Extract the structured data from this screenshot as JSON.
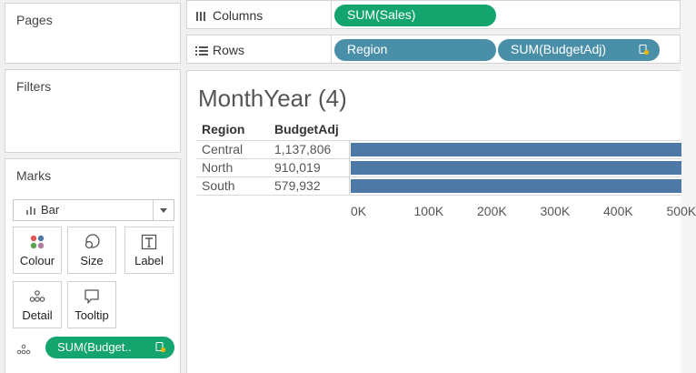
{
  "cards": {
    "pages": "Pages",
    "filters": "Filters",
    "marks": "Marks"
  },
  "marks": {
    "type": "Bar",
    "buttons": {
      "colour": "Colour",
      "size": "Size",
      "label": "Label",
      "detail": "Detail",
      "tooltip": "Tooltip"
    },
    "field_pill": "SUM(Budget..",
    "pill_color": "#14a46e"
  },
  "shelves": {
    "columns": {
      "label": "Columns",
      "pills": [
        "SUM(Sales)"
      ]
    },
    "rows": {
      "label": "Rows",
      "pills": [
        "Region",
        "SUM(BudgetAdj)"
      ]
    }
  },
  "colors": {
    "green_pill": "#14a46e",
    "blue_pill": "#4a8fa8",
    "bar": "#4e79a7"
  },
  "view": {
    "title": "MonthYear (4)",
    "headers": {
      "region": "Region",
      "budget": "BudgetAdj"
    }
  },
  "chart_data": {
    "type": "bar",
    "orientation": "horizontal",
    "categories": [
      "Central",
      "North",
      "South"
    ],
    "budget_labels": [
      "1,137,806",
      "910,019",
      "579,932"
    ],
    "x_ticks": [
      "0K",
      "100K",
      "200K",
      "300K",
      "400K",
      "500K"
    ],
    "xlim": [
      0,
      525000
    ],
    "series": [
      {
        "values": [
          525000,
          525000,
          525000
        ]
      }
    ],
    "note_bars_truncated": true
  }
}
